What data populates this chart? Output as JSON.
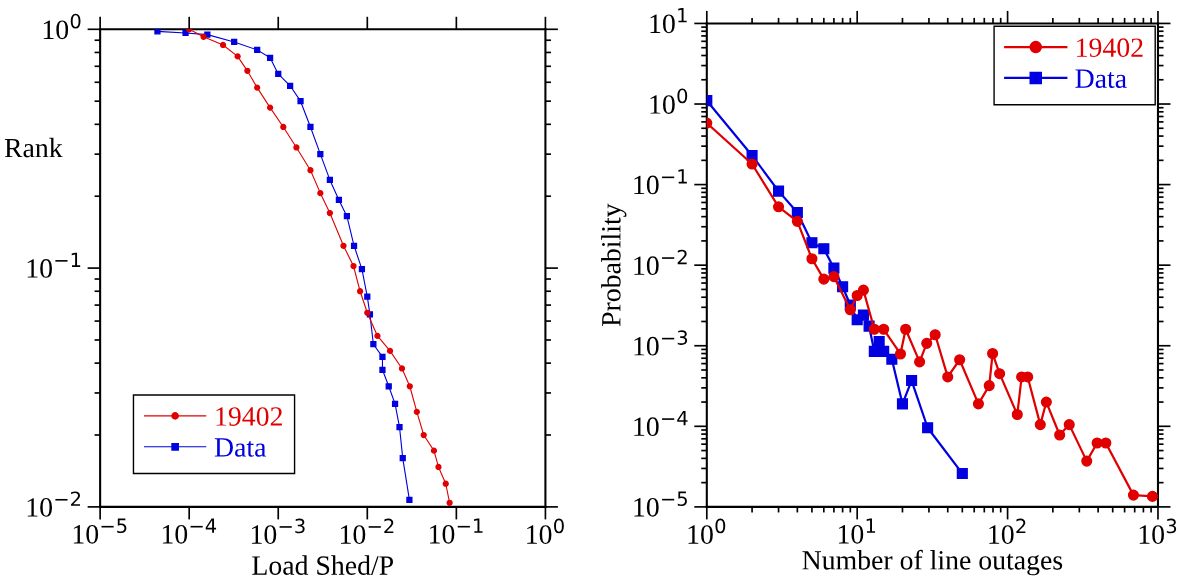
{
  "chart_data": [
    {
      "type": "line",
      "ylabel": "Rank",
      "xlabel": "Load Shed/P",
      "log": "xy",
      "grid": false,
      "legend": "bottom left",
      "xlim": [
        1e-05,
        1
      ],
      "ylim": [
        0.01,
        1
      ],
      "xticks": [
        {
          "value": 1e-05,
          "label": "10$^{−5}$"
        },
        {
          "value": 0.0001,
          "label": "10$^{−4}$"
        },
        {
          "value": 0.001,
          "label": "10$^{−3}$"
        },
        {
          "value": 0.01,
          "label": "10$^{−2}$"
        },
        {
          "value": 0.1,
          "label": "10$^{−1}$"
        },
        {
          "value": 1,
          "label": "10$^{0}$"
        }
      ],
      "yticks": [
        {
          "value": 0.01,
          "label": "10$^{−2}$"
        },
        {
          "value": 0.1,
          "label": "10$^{−1}$"
        },
        {
          "value": 1,
          "label": "10$^{0}$"
        }
      ],
      "series": [
        {
          "name": "19402",
          "color": "#e00000",
          "marker": "circle",
          "x": [
            0.0001,
            0.000145,
            0.00024,
            0.00035,
            0.00045,
            0.00058,
            0.00081,
            0.00114,
            0.0016,
            0.0023,
            0.00297,
            0.0038,
            0.0054,
            0.007,
            0.0083,
            0.01,
            0.013,
            0.018,
            0.0245,
            0.03,
            0.036,
            0.043,
            0.056,
            0.063,
            0.076,
            0.084
          ],
          "values": [
            1,
            0.93,
            0.86,
            0.77,
            0.67,
            0.57,
            0.47,
            0.39,
            0.32,
            0.257,
            0.206,
            0.17,
            0.124,
            0.102,
            0.08,
            0.065,
            0.052,
            0.045,
            0.038,
            0.032,
            0.025,
            0.02,
            0.0172,
            0.0147,
            0.0125,
            0.0104
          ]
        },
        {
          "name": "Data",
          "color": "#0000e0",
          "marker": "square",
          "x": [
            4.4e-05,
            9.1e-05,
            0.00016,
            0.00032,
            0.00058,
            0.00081,
            0.001,
            0.00136,
            0.00178,
            0.0023,
            0.00297,
            0.0038,
            0.0048,
            0.0059,
            0.0071,
            0.0087,
            0.01,
            0.0107,
            0.0117,
            0.0148,
            0.0148,
            0.0174,
            0.0205,
            0.023,
            0.025,
            0.0297
          ],
          "values": [
            0.98,
            0.965,
            0.95,
            0.885,
            0.82,
            0.76,
            0.65,
            0.58,
            0.5,
            0.39,
            0.3,
            0.234,
            0.193,
            0.165,
            0.124,
            0.099,
            0.076,
            0.064,
            0.048,
            0.0425,
            0.0375,
            0.032,
            0.027,
            0.0216,
            0.016,
            0.0107
          ]
        }
      ]
    },
    {
      "type": "line",
      "ylabel": "Probability",
      "xlabel": "Number of line outages",
      "log": "xy",
      "grid": false,
      "legend": "top right",
      "xlim": [
        1,
        1000
      ],
      "ylim": [
        1e-05,
        10
      ],
      "xticks": [
        {
          "value": 1,
          "label": "10$^{0}$"
        },
        {
          "value": 10,
          "label": "10$^{1}$"
        },
        {
          "value": 100,
          "label": "10$^{2}$"
        },
        {
          "value": 1000,
          "label": "10$^{3}$"
        }
      ],
      "yticks": [
        {
          "value": 1e-05,
          "label": "10$^{−5}$"
        },
        {
          "value": 0.0001,
          "label": "10$^{−4}$"
        },
        {
          "value": 0.001,
          "label": "10$^{−3}$"
        },
        {
          "value": 0.01,
          "label": "10$^{−2}$"
        },
        {
          "value": 0.1,
          "label": "10$^{−1}$"
        },
        {
          "value": 1,
          "label": "10$^{0}$"
        },
        {
          "value": 10,
          "label": "10$^{1}$"
        }
      ],
      "series": [
        {
          "name": "19402",
          "color": "#e00000",
          "marker": "circle",
          "x": [
            1,
            2,
            3,
            4,
            5,
            6,
            7,
            9,
            10,
            11,
            13,
            15,
            19.4,
            21,
            26,
            29,
            33,
            40,
            48,
            64,
            75.5,
            79.5,
            88.5,
            116,
            124,
            136,
            165,
            181,
            222,
            257,
            336,
            394,
            450,
            687,
            919
          ],
          "values": [
            0.58,
            0.18,
            0.053,
            0.035,
            0.012,
            0.0067,
            0.0072,
            0.0028,
            0.0042,
            0.0049,
            0.0016,
            0.0016,
            0.00079,
            0.0016,
            0.00063,
            0.00107,
            0.00137,
            0.00041,
            0.00067,
            0.00019,
            0.00032,
            0.0008,
            0.00045,
            0.00014,
            0.00041,
            0.00041,
            0.000105,
            0.0002,
            7.8e-05,
            0.000105,
            3.7e-05,
            6.2e-05,
            6.2e-05,
            1.4e-05,
            1.35e-05
          ]
        },
        {
          "name": "Data",
          "color": "#0000e0",
          "marker": "square",
          "x": [
            1,
            2,
            3,
            4,
            5,
            6,
            7,
            8,
            9,
            10,
            11,
            12,
            13,
            14,
            15,
            17,
            20,
            23,
            29.4,
            50
          ],
          "values": [
            1.1,
            0.23,
            0.083,
            0.045,
            0.019,
            0.016,
            0.0092,
            0.0054,
            0.0032,
            0.0021,
            0.0024,
            0.00175,
            0.00085,
            0.00113,
            0.00085,
            0.00068,
            0.00019,
            0.00037,
            9.6e-05,
            2.6e-05
          ]
        }
      ]
    }
  ]
}
